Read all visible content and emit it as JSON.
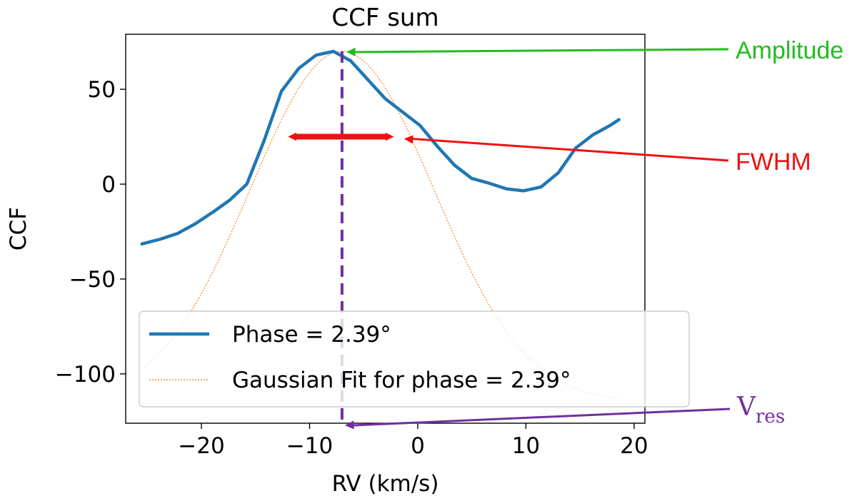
{
  "chart_data": {
    "type": "line",
    "title": "CCF sum",
    "xlabel": "RV (km/s)",
    "ylabel": "CCF",
    "xlim": [
      -27,
      21
    ],
    "ylim": [
      -126,
      79
    ],
    "xticks": [
      -20,
      -10,
      0,
      10,
      20
    ],
    "xtick_labels": [
      "−20",
      "−10",
      "0",
      "10",
      "20"
    ],
    "yticks": [
      50,
      0,
      -50,
      -100
    ],
    "ytick_labels": [
      "50",
      "0",
      "−50",
      "−100"
    ],
    "series": [
      {
        "name": "Phase = 2.39°",
        "style": "solid",
        "color": "#1f77b4",
        "x": [
          -25.5,
          -23.8,
          -22.2,
          -20.6,
          -19.0,
          -17.4,
          -15.8,
          -14.2,
          -12.6,
          -11.0,
          -9.4,
          -7.8,
          -6.2,
          -4.6,
          -3.0,
          -1.4,
          0.2,
          1.8,
          3.4,
          5.0,
          6.6,
          8.2,
          9.8,
          11.4,
          13.0,
          14.6,
          16.2,
          17.8,
          18.6
        ],
        "values": [
          -31.5,
          -29,
          -26,
          -21,
          -15,
          -8.5,
          0,
          23,
          49,
          61,
          68,
          70,
          65,
          55,
          45,
          38,
          31,
          20,
          10,
          3,
          0.5,
          -2.5,
          -3.5,
          -1.5,
          6,
          19,
          26,
          31,
          34
        ]
      },
      {
        "name": "Gaussian Fit for phase = 2.39°",
        "style": "dotted",
        "color": "#ff7f0e",
        "gaussian": {
          "amplitude": 185,
          "mean": -7.0,
          "fwhm": 20.0,
          "offset": -115
        },
        "x_range": [
          -25.5,
          18.6
        ]
      }
    ],
    "legend": {
      "placement": "lower-left"
    },
    "annotations": {
      "amplitude": {
        "label": "Amplitude",
        "color": "#22bb22",
        "target": [
          -7.0,
          70
        ]
      },
      "fwhm": {
        "label": "FWHM",
        "color": "#ee1111",
        "bar": [
          -12.0,
          -2.2
        ],
        "y": 25,
        "target": [
          -2.2,
          25
        ]
      },
      "vres": {
        "label_main": "V",
        "label_sub": "res",
        "color": "#7030a0",
        "x": -7.0,
        "target": [
          -7.0,
          -126
        ]
      }
    }
  }
}
